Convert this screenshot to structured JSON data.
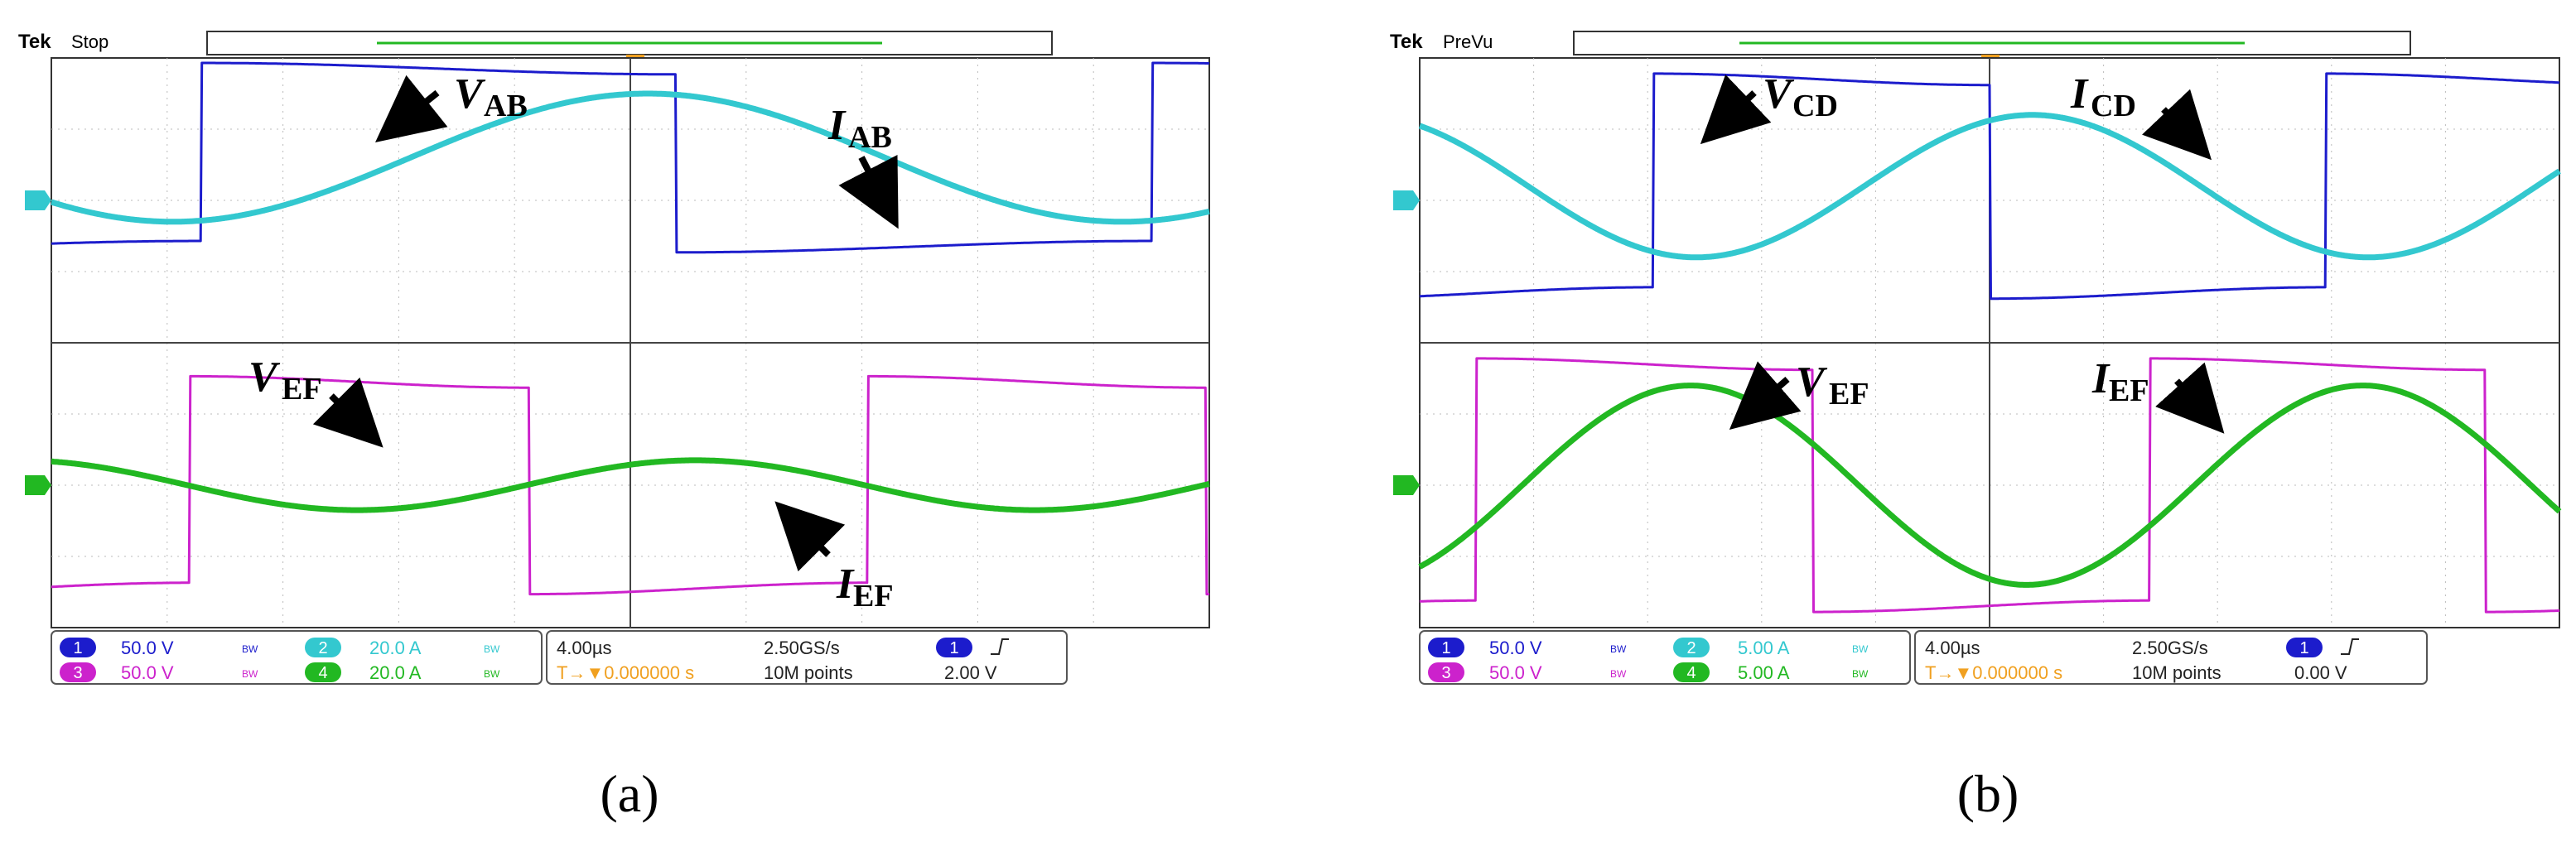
{
  "panels": [
    {
      "id": "a",
      "caption": "(a)",
      "brand": "Tek",
      "status": "Stop",
      "trigger_marker": "T",
      "upper_labels": [
        {
          "sym": "V",
          "sub": "AB"
        },
        {
          "sym": "I",
          "sub": "AB"
        }
      ],
      "lower_labels": [
        {
          "sym": "V",
          "sub": "EF"
        },
        {
          "sym": "I",
          "sub": "EF"
        }
      ],
      "channels": [
        {
          "num": "1",
          "scale": "50.0 V",
          "bw": "BW"
        },
        {
          "num": "3",
          "scale": "50.0 V",
          "bw": "BW"
        },
        {
          "num": "2",
          "scale": "20.0 A",
          "bw": "BW"
        },
        {
          "num": "4",
          "scale": "20.0 A",
          "bw": "BW"
        }
      ],
      "timebase": "4.00µs",
      "trig_pos": "T→▼0.000000 s",
      "sample_rate": "2.50GS/s",
      "record": "10M points",
      "trig_chan": "1",
      "trig_level": "2.00 V",
      "colors": {
        "ch1": "#1c1ccc",
        "ch2": "#33c8cf",
        "ch3": "#cc22cc",
        "ch4": "#22b822"
      },
      "chart_data": {
        "type": "line",
        "note_units": "time in divisions (10 div across), amplitude in divisions",
        "series": [
          {
            "name": "VAB",
            "shape": "square",
            "period_div": 8.2,
            "phase_div": 1.3,
            "amplitude_div": 1.25,
            "offset_div": 0.6
          },
          {
            "name": "IAB",
            "shape": "sine",
            "period_div": 8.2,
            "phase_div": 3.1,
            "amplitude_div": 0.9,
            "offset_div": 0.6
          },
          {
            "name": "VEF",
            "shape": "square",
            "period_div": 5.85,
            "phase_div": 1.2,
            "amplitude_div": 1.45,
            "offset_div": 0.0
          },
          {
            "name": "IEF",
            "shape": "sine",
            "period_div": 5.85,
            "phase_div": 4.1,
            "amplitude_div": 0.35,
            "offset_div": 0.0
          }
        ]
      }
    },
    {
      "id": "b",
      "caption": "(b)",
      "brand": "Tek",
      "status": "PreVu",
      "trigger_marker": "T",
      "upper_labels": [
        {
          "sym": "V",
          "sub": "CD"
        },
        {
          "sym": "I",
          "sub": "CD"
        }
      ],
      "lower_labels": [
        {
          "sym": "V",
          "sub": "EF"
        },
        {
          "sym": "I",
          "sub": "EF"
        }
      ],
      "channels": [
        {
          "num": "1",
          "scale": "50.0 V",
          "bw": "BW"
        },
        {
          "num": "3",
          "scale": "50.0 V",
          "bw": "BW"
        },
        {
          "num": "2",
          "scale": "5.00 A",
          "bw": "BW"
        },
        {
          "num": "4",
          "scale": "5.00 A",
          "bw": "BW"
        }
      ],
      "timebase": "4.00µs",
      "trig_pos": "T→▼0.000000 s",
      "sample_rate": "2.50GS/s",
      "record": "10M points",
      "trig_chan": "1",
      "trig_level": "0.00 V",
      "colors": {
        "ch1": "#1c1ccc",
        "ch2": "#33c8cf",
        "ch3": "#cc22cc",
        "ch4": "#22b822"
      },
      "chart_data": {
        "type": "line",
        "note_units": "time in divisions (10 div across), amplitude in divisions",
        "series": [
          {
            "name": "VCD",
            "shape": "square",
            "period_div": 5.9,
            "phase_div": 2.05,
            "amplitude_div": 1.5,
            "offset_div": 0.2
          },
          {
            "name": "ICD",
            "shape": "sine",
            "period_div": 5.9,
            "phase_div": 3.9,
            "amplitude_div": 1.0,
            "offset_div": 0.2
          },
          {
            "name": "VEF",
            "shape": "square",
            "period_div": 5.9,
            "phase_div": 0.5,
            "amplitude_div": 1.7,
            "offset_div": 0.0
          },
          {
            "name": "IEF",
            "shape": "sine",
            "period_div": 5.9,
            "phase_div": 0.9,
            "amplitude_div": 1.4,
            "offset_div": 0.0
          }
        ]
      }
    }
  ]
}
